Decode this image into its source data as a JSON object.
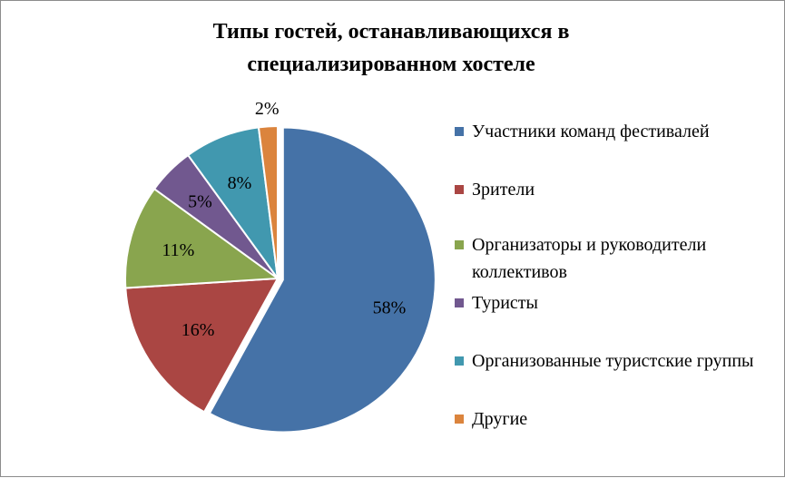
{
  "chart_data": {
    "type": "pie",
    "title": "Типы гостей, останавливающихся в\nспециализированном хостеле",
    "categories": [
      "Участники команд фестивалей",
      "Зрители",
      "Организаторы и руководители коллективов",
      "Туристы",
      "Организованные туристские группы",
      "Другие"
    ],
    "values": [
      58,
      16,
      11,
      5,
      8,
      2
    ],
    "data_labels": [
      "58%",
      "16%",
      "11%",
      "5%",
      "8%",
      "2%"
    ],
    "colors": [
      "#4572a7",
      "#aa4643",
      "#89a54e",
      "#71588f",
      "#4198af",
      "#db843d"
    ],
    "exploded_slice": "Участники команд фестивалей",
    "start_angle": "top, clockwise",
    "legend_position": "right"
  }
}
